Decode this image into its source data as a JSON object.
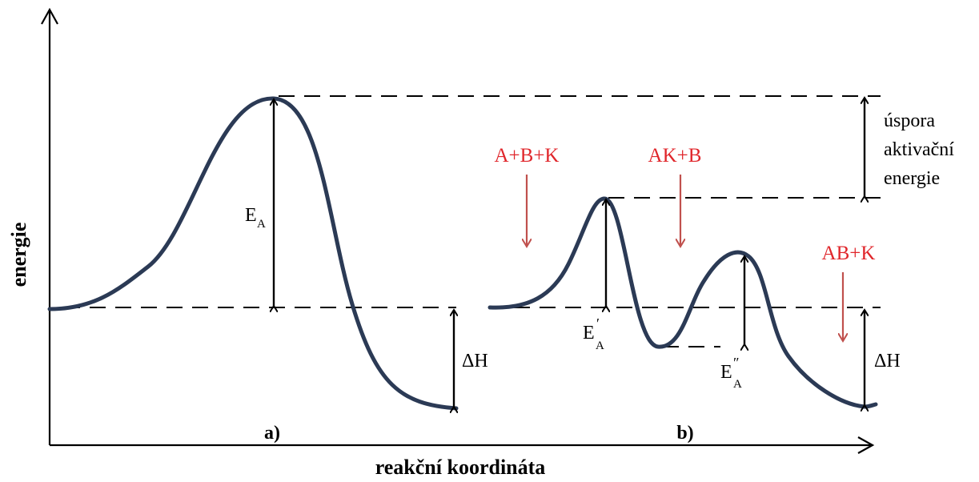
{
  "axes": {
    "y_label": "energie",
    "x_label": "reakční koordináta"
  },
  "panels": {
    "a_label": "a)",
    "b_label": "b)"
  },
  "labels": {
    "ea_main": "E",
    "ea_sub": "A",
    "ea1_main": "E",
    "ea1_prime": "′",
    "ea1_sub": "A",
    "ea2_main": "E",
    "ea2_prime": "″",
    "ea2_sub": "A",
    "dh_a": "ΔH",
    "dh_b": "ΔH",
    "savings_line1": "úspora",
    "savings_line2": "aktivační",
    "savings_line3": "energie"
  },
  "species": {
    "reactants": "A+B+K",
    "intermediate": "AK+B",
    "products": "AB+K"
  },
  "colors": {
    "curve": "#2b3a55",
    "species_text": "#e0262b",
    "species_arrow": "#c0504d"
  }
}
